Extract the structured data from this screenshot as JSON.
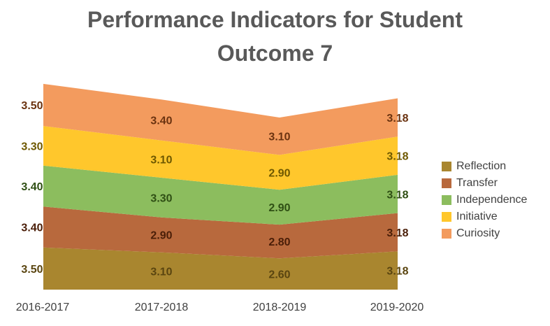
{
  "chart_data": {
    "type": "area",
    "stacked": true,
    "title_lines": [
      "Performance Indicators for Student",
      "Outcome 7"
    ],
    "categories": [
      "2016-2017",
      "2017-2018",
      "2018-2019",
      "2019-2020"
    ],
    "series": [
      {
        "name": "Reflection",
        "values": [
          3.5,
          3.1,
          2.6,
          3.18
        ],
        "color": "#A9862F",
        "label_color": "#5A4510"
      },
      {
        "name": "Transfer",
        "values": [
          3.4,
          2.9,
          2.8,
          3.18
        ],
        "color": "#B8693D",
        "label_color": "#4A1E08"
      },
      {
        "name": "Independence",
        "values": [
          3.4,
          3.3,
          2.9,
          3.18
        ],
        "color": "#8CBD5E",
        "label_color": "#2F4F14"
      },
      {
        "name": "Initiative",
        "values": [
          3.3,
          3.1,
          2.9,
          3.18
        ],
        "color": "#FFC72C",
        "label_color": "#6E5800"
      },
      {
        "name": "Curiosity",
        "values": [
          3.5,
          3.4,
          3.1,
          3.18
        ],
        "color": "#F39B5E",
        "label_color": "#6B3310"
      }
    ],
    "value_labels": [
      [
        "3.50",
        "3.10",
        "2.60",
        "3.18"
      ],
      [
        "3.40",
        "2.90",
        "2.80",
        "3.18"
      ],
      [
        "3.40",
        "3.30",
        "2.90",
        "3.18"
      ],
      [
        "3.30",
        "3.10",
        "2.90",
        "3.18"
      ],
      [
        "3.50",
        "3.40",
        "3.10",
        "3.18"
      ]
    ],
    "legend_position": "right",
    "grid": false
  }
}
